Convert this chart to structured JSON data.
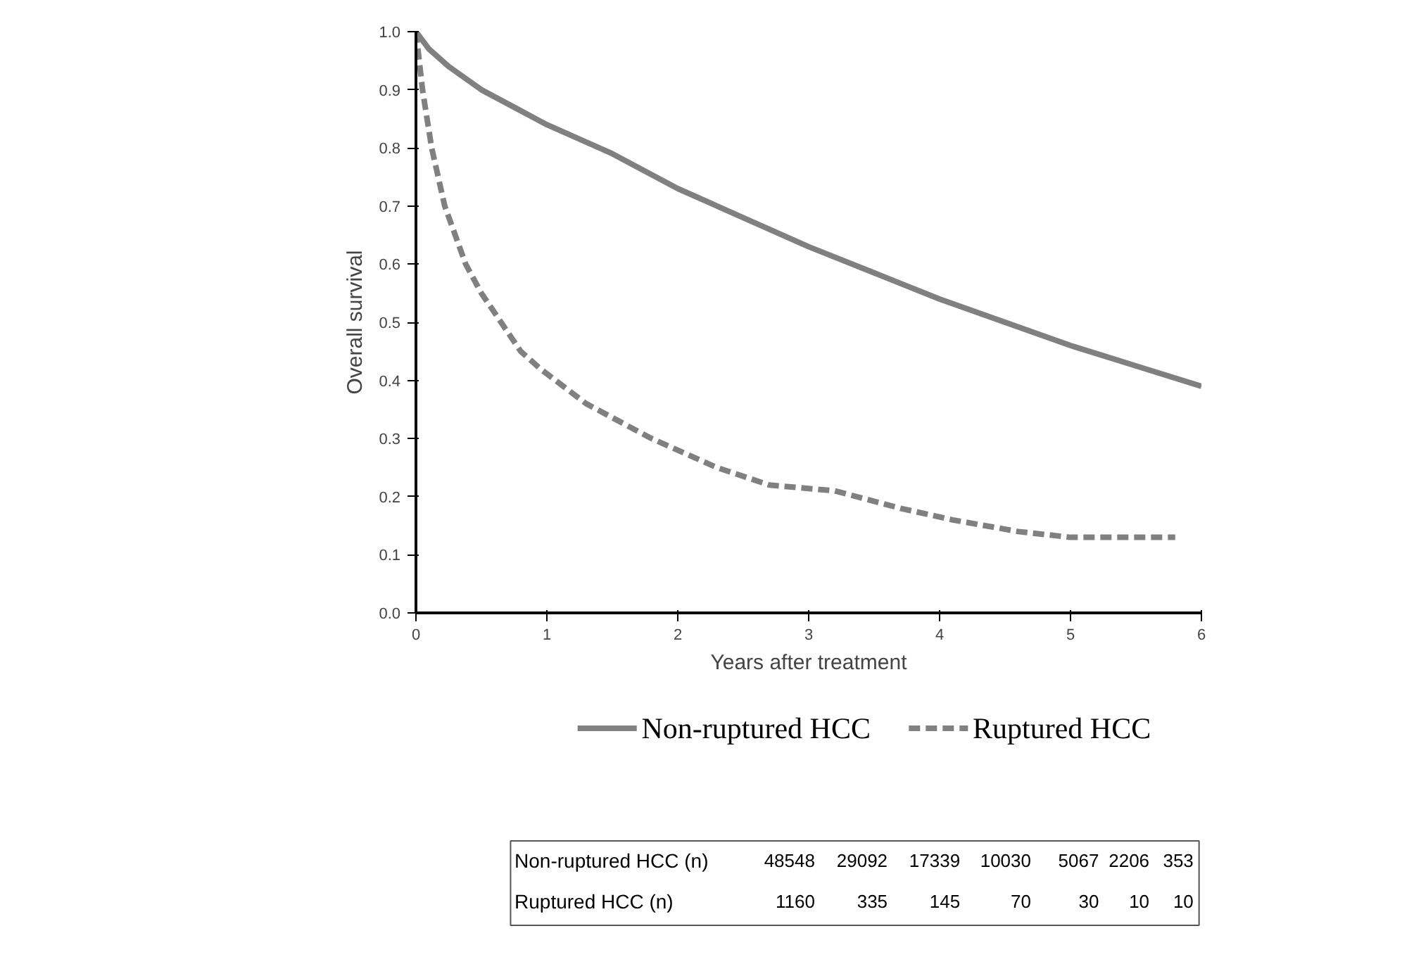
{
  "chart_data": {
    "type": "line",
    "xlabel": "Years after treatment",
    "ylabel": "Overall survival",
    "xlim": [
      0,
      6
    ],
    "ylim": [
      0,
      1.0
    ],
    "xticks": [
      0,
      1,
      2,
      3,
      4,
      5,
      6
    ],
    "yticks": [
      {
        "value": 0,
        "label": "0.0"
      },
      0.1,
      0.2,
      0.3,
      0.4,
      0.5,
      0.6,
      0.7,
      0.8,
      0.9,
      {
        "value": 1,
        "label": "1.0"
      }
    ],
    "grid": false,
    "legend": "bottom",
    "marker": "none",
    "series": [
      {
        "name": "Non-ruptured HCC",
        "color": "#808080",
        "line_style": "solid",
        "x": [
          0,
          0.1,
          0.25,
          0.5,
          0.75,
          1,
          1.5,
          2,
          2.5,
          3,
          3.5,
          4,
          4.5,
          5,
          5.5,
          6
        ],
        "values": [
          1.0,
          0.97,
          0.94,
          0.9,
          0.87,
          0.84,
          0.79,
          0.73,
          0.68,
          0.63,
          0.585,
          0.54,
          0.5,
          0.46,
          0.425,
          0.39
        ]
      },
      {
        "name": "Ruptured HCC",
        "color": "#808080",
        "line_style": "dashed",
        "x": [
          0,
          0.05,
          0.12,
          0.22,
          0.38,
          0.5,
          0.65,
          0.8,
          0.95,
          1.3,
          1.8,
          2.3,
          2.7,
          3.2,
          3.7,
          4.1,
          4.6,
          5.0,
          5.8
        ],
        "values": [
          1.0,
          0.9,
          0.8,
          0.7,
          0.6,
          0.55,
          0.5,
          0.45,
          0.42,
          0.36,
          0.3,
          0.25,
          0.22,
          0.21,
          0.18,
          0.16,
          0.14,
          0.13,
          0.13
        ]
      }
    ],
    "annotations": [
      "Non-ruptured HCC (n)",
      "48548",
      "29092",
      "17339",
      "10030",
      "5067",
      "2206",
      "353",
      "Ruptured HCC (n)",
      "1160",
      "335",
      "145",
      "70",
      "30",
      "10",
      "10"
    ]
  }
}
